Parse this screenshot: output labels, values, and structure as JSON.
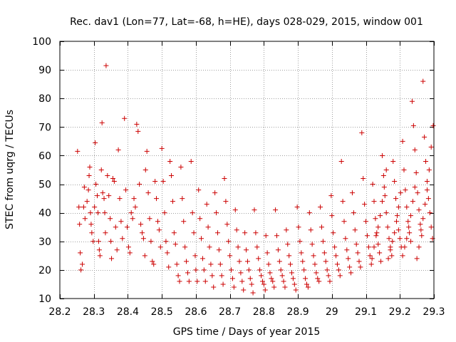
{
  "chart_data": {
    "type": "scatter",
    "title": "Rec. dav1 (Lon=77, Lat=-68, h=HE), days 028-029, 2015, window 001",
    "xlabel": "GPS time / Days of year 2015",
    "ylabel": "STEC from uqrg / TECUs",
    "xlim": [
      28.2,
      29.3
    ],
    "ylim": [
      10,
      100
    ],
    "xticks": [
      28.2,
      28.3,
      28.4,
      28.5,
      28.6,
      28.7,
      28.8,
      28.9,
      29.0,
      29.1,
      29.2,
      29.3
    ],
    "xtick_labels": [
      "28.2",
      "28.3",
      "28.4",
      "28.5",
      "28.6",
      "28.7",
      "28.8",
      "28.9",
      "29",
      "29.1",
      "29.2",
      "29.3"
    ],
    "yticks": [
      10,
      20,
      30,
      40,
      50,
      60,
      70,
      80,
      90,
      100
    ],
    "ytick_labels": [
      "10",
      "20",
      "30",
      "40",
      "50",
      "60",
      "70",
      "80",
      "90",
      "100"
    ],
    "grid": true,
    "marker": "+",
    "color": "#cc0000",
    "series": [
      {
        "name": "STEC",
        "points": [
          [
            28.252,
            61.5
          ],
          [
            28.256,
            42
          ],
          [
            28.258,
            36
          ],
          [
            28.26,
            26
          ],
          [
            28.262,
            20
          ],
          [
            28.266,
            22
          ],
          [
            28.27,
            42
          ],
          [
            28.272,
            49
          ],
          [
            28.274,
            38
          ],
          [
            28.28,
            44
          ],
          [
            28.284,
            48
          ],
          [
            28.286,
            53
          ],
          [
            28.288,
            56
          ],
          [
            28.29,
            40
          ],
          [
            28.292,
            36
          ],
          [
            28.294,
            33
          ],
          [
            28.298,
            30
          ],
          [
            28.302,
            42
          ],
          [
            28.304,
            64.5
          ],
          [
            28.306,
            50
          ],
          [
            28.31,
            46
          ],
          [
            28.312,
            40
          ],
          [
            28.314,
            30
          ],
          [
            28.316,
            27
          ],
          [
            28.318,
            25
          ],
          [
            28.322,
            55
          ],
          [
            28.324,
            71.5
          ],
          [
            28.326,
            47
          ],
          [
            28.33,
            45
          ],
          [
            28.332,
            40
          ],
          [
            28.334,
            33
          ],
          [
            28.336,
            91.5
          ],
          [
            28.34,
            53
          ],
          [
            28.344,
            46
          ],
          [
            28.348,
            38
          ],
          [
            28.35,
            30
          ],
          [
            28.352,
            24
          ],
          [
            28.356,
            52
          ],
          [
            28.36,
            51
          ],
          [
            28.364,
            35
          ],
          [
            28.368,
            27
          ],
          [
            28.372,
            62
          ],
          [
            28.376,
            45
          ],
          [
            28.38,
            37
          ],
          [
            28.384,
            31
          ],
          [
            28.39,
            73
          ],
          [
            28.394,
            48
          ],
          [
            28.398,
            35
          ],
          [
            28.402,
            28
          ],
          [
            28.406,
            26
          ],
          [
            28.41,
            40
          ],
          [
            28.414,
            38
          ],
          [
            28.418,
            45
          ],
          [
            28.422,
            42
          ],
          [
            28.426,
            71
          ],
          [
            28.43,
            68.5
          ],
          [
            28.434,
            50
          ],
          [
            28.438,
            36
          ],
          [
            28.442,
            33
          ],
          [
            28.446,
            31
          ],
          [
            28.45,
            25
          ],
          [
            28.452,
            55
          ],
          [
            28.456,
            61.5
          ],
          [
            28.46,
            47
          ],
          [
            28.464,
            38
          ],
          [
            28.468,
            30
          ],
          [
            28.472,
            23
          ],
          [
            28.476,
            22
          ],
          [
            28.48,
            51
          ],
          [
            28.484,
            45
          ],
          [
            28.488,
            37
          ],
          [
            28.492,
            34
          ],
          [
            28.496,
            28
          ],
          [
            28.5,
            62.5
          ],
          [
            28.504,
            51
          ],
          [
            28.508,
            40
          ],
          [
            28.512,
            30
          ],
          [
            28.516,
            26
          ],
          [
            28.52,
            21
          ],
          [
            28.524,
            58
          ],
          [
            28.528,
            53
          ],
          [
            28.532,
            44
          ],
          [
            28.536,
            33
          ],
          [
            28.54,
            29
          ],
          [
            28.544,
            22
          ],
          [
            28.548,
            18
          ],
          [
            28.552,
            16
          ],
          [
            28.556,
            56
          ],
          [
            28.56,
            45
          ],
          [
            28.564,
            37
          ],
          [
            28.568,
            28
          ],
          [
            28.572,
            23
          ],
          [
            28.576,
            19
          ],
          [
            28.58,
            16
          ],
          [
            28.586,
            58
          ],
          [
            28.59,
            40
          ],
          [
            28.594,
            33
          ],
          [
            28.598,
            25
          ],
          [
            28.6,
            20
          ],
          [
            28.604,
            16
          ],
          [
            28.608,
            48
          ],
          [
            28.612,
            38
          ],
          [
            28.616,
            31
          ],
          [
            28.62,
            24
          ],
          [
            28.624,
            20
          ],
          [
            28.628,
            16
          ],
          [
            28.632,
            43
          ],
          [
            28.636,
            35
          ],
          [
            28.64,
            28
          ],
          [
            28.644,
            22
          ],
          [
            28.648,
            18
          ],
          [
            28.652,
            14
          ],
          [
            28.656,
            47
          ],
          [
            28.66,
            40
          ],
          [
            28.664,
            33
          ],
          [
            28.668,
            27
          ],
          [
            28.672,
            22
          ],
          [
            28.676,
            18
          ],
          [
            28.68,
            15
          ],
          [
            28.684,
            52
          ],
          [
            28.688,
            44
          ],
          [
            28.692,
            36
          ],
          [
            28.696,
            30
          ],
          [
            28.7,
            25
          ],
          [
            28.704,
            20
          ],
          [
            28.708,
            17
          ],
          [
            28.712,
            14
          ],
          [
            28.716,
            41
          ],
          [
            28.72,
            34
          ],
          [
            28.724,
            28
          ],
          [
            28.728,
            23
          ],
          [
            28.732,
            19
          ],
          [
            28.736,
            16
          ],
          [
            28.74,
            13
          ],
          [
            28.744,
            33
          ],
          [
            28.748,
            27
          ],
          [
            28.752,
            23
          ],
          [
            28.756,
            20
          ],
          [
            28.76,
            17
          ],
          [
            28.764,
            15
          ],
          [
            28.768,
            12
          ],
          [
            28.772,
            41
          ],
          [
            28.776,
            33
          ],
          [
            28.78,
            28
          ],
          [
            28.784,
            24
          ],
          [
            28.788,
            20
          ],
          [
            28.792,
            18
          ],
          [
            28.796,
            16
          ],
          [
            28.8,
            15
          ],
          [
            28.804,
            13
          ],
          [
            28.806,
            32
          ],
          [
            28.81,
            26
          ],
          [
            28.814,
            22
          ],
          [
            28.818,
            19
          ],
          [
            28.822,
            17
          ],
          [
            28.826,
            16
          ],
          [
            28.83,
            14
          ],
          [
            28.834,
            41
          ],
          [
            28.838,
            32
          ],
          [
            28.842,
            27
          ],
          [
            28.846,
            23
          ],
          [
            28.85,
            20
          ],
          [
            28.854,
            18
          ],
          [
            28.858,
            16
          ],
          [
            28.862,
            14
          ],
          [
            28.866,
            34
          ],
          [
            28.87,
            29
          ],
          [
            28.874,
            25
          ],
          [
            28.878,
            22
          ],
          [
            28.882,
            19
          ],
          [
            28.886,
            17
          ],
          [
            28.89,
            15
          ],
          [
            28.894,
            13
          ],
          [
            28.898,
            42
          ],
          [
            28.902,
            35
          ],
          [
            28.906,
            30
          ],
          [
            28.91,
            26
          ],
          [
            28.914,
            23
          ],
          [
            28.918,
            20
          ],
          [
            28.922,
            17
          ],
          [
            28.926,
            15
          ],
          [
            28.93,
            14
          ],
          [
            28.934,
            40
          ],
          [
            28.938,
            34
          ],
          [
            28.942,
            29
          ],
          [
            28.946,
            25
          ],
          [
            28.95,
            22
          ],
          [
            28.954,
            19
          ],
          [
            28.958,
            17
          ],
          [
            28.962,
            16
          ],
          [
            28.966,
            42
          ],
          [
            28.97,
            35
          ],
          [
            28.974,
            30
          ],
          [
            28.978,
            26
          ],
          [
            28.982,
            23
          ],
          [
            28.986,
            20
          ],
          [
            28.99,
            18
          ],
          [
            28.994,
            16
          ],
          [
            28.998,
            46
          ],
          [
            29.0,
            39
          ],
          [
            29.004,
            33
          ],
          [
            29.008,
            28
          ],
          [
            29.012,
            25
          ],
          [
            29.016,
            22
          ],
          [
            29.02,
            20
          ],
          [
            29.024,
            18
          ],
          [
            29.028,
            58
          ],
          [
            29.032,
            44
          ],
          [
            29.036,
            37
          ],
          [
            29.04,
            31
          ],
          [
            29.044,
            27
          ],
          [
            29.048,
            24
          ],
          [
            29.052,
            21
          ],
          [
            29.056,
            19
          ],
          [
            29.06,
            47
          ],
          [
            29.064,
            40
          ],
          [
            29.068,
            34
          ],
          [
            29.072,
            29
          ],
          [
            29.076,
            26
          ],
          [
            29.08,
            23
          ],
          [
            29.084,
            21
          ],
          [
            29.088,
            68
          ],
          [
            29.092,
            52
          ],
          [
            29.096,
            43
          ],
          [
            29.1,
            37
          ],
          [
            29.104,
            32
          ],
          [
            29.108,
            28
          ],
          [
            29.112,
            25
          ],
          [
            29.116,
            22
          ],
          [
            29.12,
            50
          ],
          [
            29.124,
            44
          ],
          [
            29.128,
            38
          ],
          [
            29.132,
            33
          ],
          [
            29.136,
            29
          ],
          [
            29.14,
            26
          ],
          [
            29.144,
            23
          ],
          [
            29.148,
            60
          ],
          [
            29.152,
            53
          ],
          [
            29.156,
            46
          ],
          [
            29.16,
            40
          ],
          [
            29.164,
            35
          ],
          [
            29.168,
            31
          ],
          [
            29.172,
            28
          ],
          [
            29.176,
            25
          ],
          [
            29.18,
            58
          ],
          [
            29.184,
            51
          ],
          [
            29.188,
            45
          ],
          [
            29.192,
            39
          ],
          [
            29.196,
            34
          ],
          [
            29.2,
            31
          ],
          [
            29.204,
            28
          ],
          [
            29.208,
            65
          ],
          [
            29.212,
            55
          ],
          [
            29.216,
            48
          ],
          [
            29.22,
            42
          ],
          [
            29.224,
            37
          ],
          [
            29.228,
            33
          ],
          [
            29.232,
            30
          ],
          [
            29.236,
            79
          ],
          [
            29.24,
            70.5
          ],
          [
            29.244,
            62
          ],
          [
            29.248,
            54
          ],
          [
            29.252,
            47
          ],
          [
            29.256,
            41
          ],
          [
            29.26,
            36
          ],
          [
            29.264,
            32
          ],
          [
            29.268,
            86
          ],
          [
            29.272,
            66.5
          ],
          [
            29.276,
            58
          ],
          [
            29.28,
            51
          ],
          [
            29.284,
            45
          ],
          [
            29.288,
            40
          ],
          [
            29.292,
            35
          ],
          [
            29.296,
            31
          ],
          [
            29.298,
            70.5
          ],
          [
            29.292,
            63
          ],
          [
            29.286,
            55
          ],
          [
            29.28,
            48
          ],
          [
            29.274,
            43
          ],
          [
            29.268,
            38
          ],
          [
            29.262,
            34
          ],
          [
            29.256,
            28
          ],
          [
            29.25,
            24
          ],
          [
            29.244,
            49
          ],
          [
            29.238,
            44
          ],
          [
            29.232,
            39
          ],
          [
            29.226,
            35
          ],
          [
            29.22,
            31
          ],
          [
            29.214,
            28
          ],
          [
            29.208,
            25
          ],
          [
            29.202,
            47
          ],
          [
            29.196,
            42
          ],
          [
            29.19,
            37
          ],
          [
            29.184,
            33
          ],
          [
            29.178,
            30
          ],
          [
            29.172,
            27
          ],
          [
            29.166,
            24
          ],
          [
            29.16,
            55
          ],
          [
            29.154,
            49
          ],
          [
            29.148,
            44
          ],
          [
            29.142,
            39
          ],
          [
            29.136,
            35
          ],
          [
            29.13,
            32
          ],
          [
            29.124,
            28
          ],
          [
            29.118,
            24
          ]
        ]
      }
    ]
  }
}
